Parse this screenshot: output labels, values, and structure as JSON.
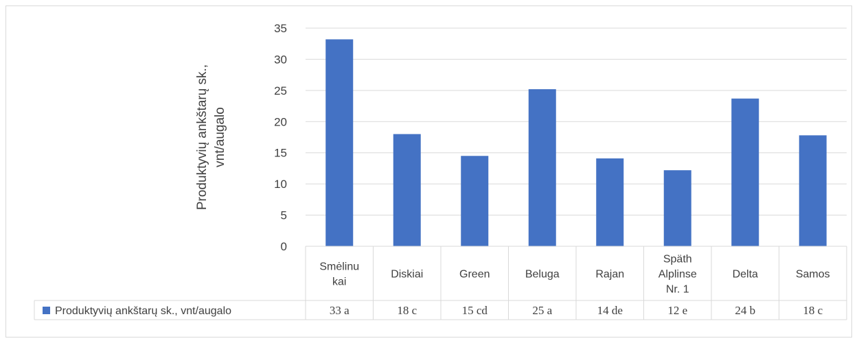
{
  "chart_data": {
    "type": "bar",
    "categories": [
      [
        "Smėlinu",
        "kai"
      ],
      [
        "Diskiai"
      ],
      [
        "Green"
      ],
      [
        "Beluga"
      ],
      [
        "Rajan"
      ],
      [
        "Späth",
        "Alplinse",
        "Nr. 1"
      ],
      [
        "Delta"
      ],
      [
        "Samos"
      ]
    ],
    "series": [
      {
        "name": "Produktyvių ankštarų sk., vnt/augalo",
        "values": [
          33.2,
          18.0,
          14.5,
          25.2,
          14.1,
          12.2,
          23.7,
          17.8
        ],
        "table_labels": [
          "33 a",
          "18 c",
          "15 cd",
          "25 a",
          "14 de",
          "12 e",
          "24 b",
          "18 c"
        ]
      }
    ],
    "ylabel_lines": [
      "Produktyvių ankštarų sk.,",
      "vnt/augalo"
    ],
    "ylim": [
      0,
      35
    ],
    "yticks": [
      0,
      5,
      10,
      15,
      20,
      25,
      30,
      35
    ],
    "grid": true,
    "bar_color": "#4472c4",
    "grid_color": "#d9d9d9",
    "text_color": "#404040"
  }
}
